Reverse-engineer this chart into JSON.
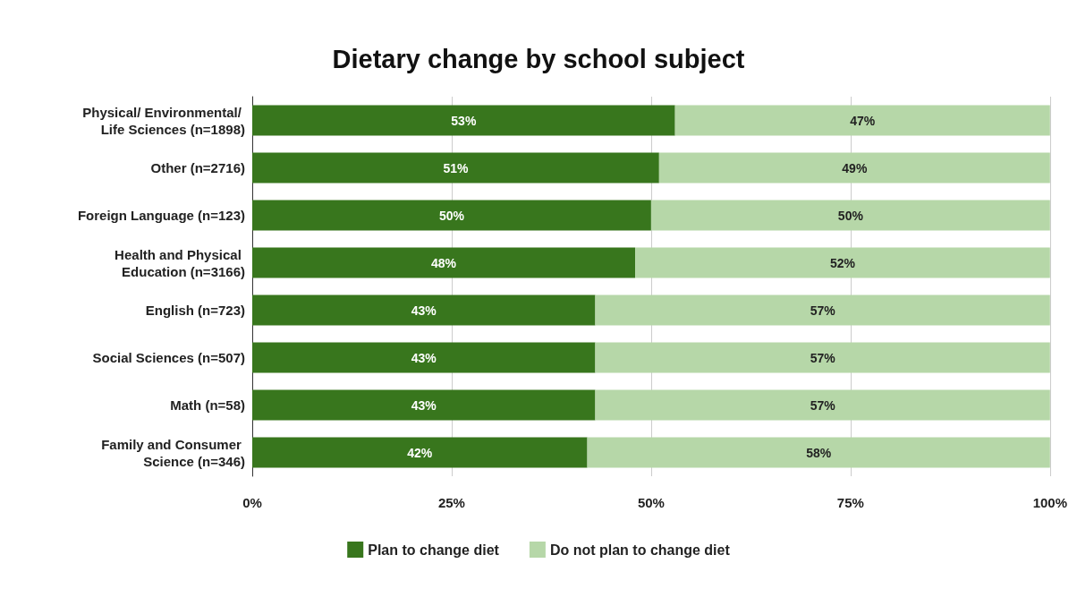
{
  "chart_data": {
    "type": "bar",
    "orientation": "horizontal",
    "stacked": true,
    "title": "Dietary change by school subject",
    "categories": [
      "Physical/ Environmental/ Life Sciences (n=1898)",
      "Other (n=2716)",
      "Foreign Language (n=123)",
      "Health and Physical Education (n=3166)",
      "English (n=723)",
      "Social Sciences (n=507)",
      "Math (n=58)",
      "Family and Consumer Science (n=346)"
    ],
    "series": [
      {
        "name": "Plan to change diet",
        "color": "#38761d",
        "values": [
          53,
          51,
          50,
          48,
          43,
          43,
          43,
          42
        ],
        "value_labels": [
          "53%",
          "51%",
          "50%",
          "48%",
          "43%",
          "43%",
          "43%",
          "42%"
        ]
      },
      {
        "name": "Do not plan to change diet",
        "color": "#b6d7a8",
        "values": [
          47,
          49,
          50,
          52,
          57,
          57,
          57,
          58
        ],
        "value_labels": [
          "47%",
          "49%",
          "50%",
          "52%",
          "57%",
          "57%",
          "57%",
          "58%"
        ]
      }
    ],
    "xlim": [
      0,
      100
    ],
    "xticks": [
      {
        "value": 0,
        "label": "0%"
      },
      {
        "value": 25,
        "label": "25%"
      },
      {
        "value": 50,
        "label": "50%"
      },
      {
        "value": 75,
        "label": "75%"
      },
      {
        "value": 100,
        "label": "100%"
      }
    ],
    "grid": "x",
    "legend": "bottom"
  }
}
